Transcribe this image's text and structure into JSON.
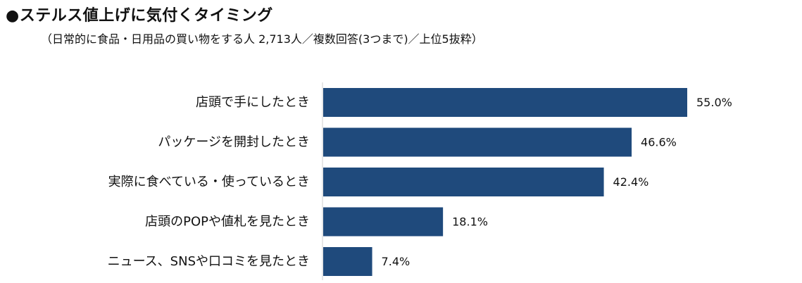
{
  "chart_data": {
    "type": "bar",
    "orientation": "horizontal",
    "title": "●ステルス値上げに気付くタイミング",
    "subtitle": "（日常的に食品・日用品の買い物をする人 2,713人／複数回答(3つまで)／上位5抜粋）",
    "categories": [
      "店頭で手にしたとき",
      "パッケージを開封したとき",
      "実際に食べている・使っているとき",
      "店頭のPOPや値札を見たとき",
      "ニュース、SNSや口コミを見たとき"
    ],
    "values": [
      55.0,
      46.6,
      42.4,
      18.1,
      7.4
    ],
    "value_labels": [
      "55.0%",
      "46.6%",
      "42.4%",
      "18.1%",
      "7.4%"
    ],
    "unit": "%",
    "xlim": [
      0,
      80
    ],
    "grid": false,
    "legend": "none",
    "bar_color": "#1f4a7c"
  }
}
